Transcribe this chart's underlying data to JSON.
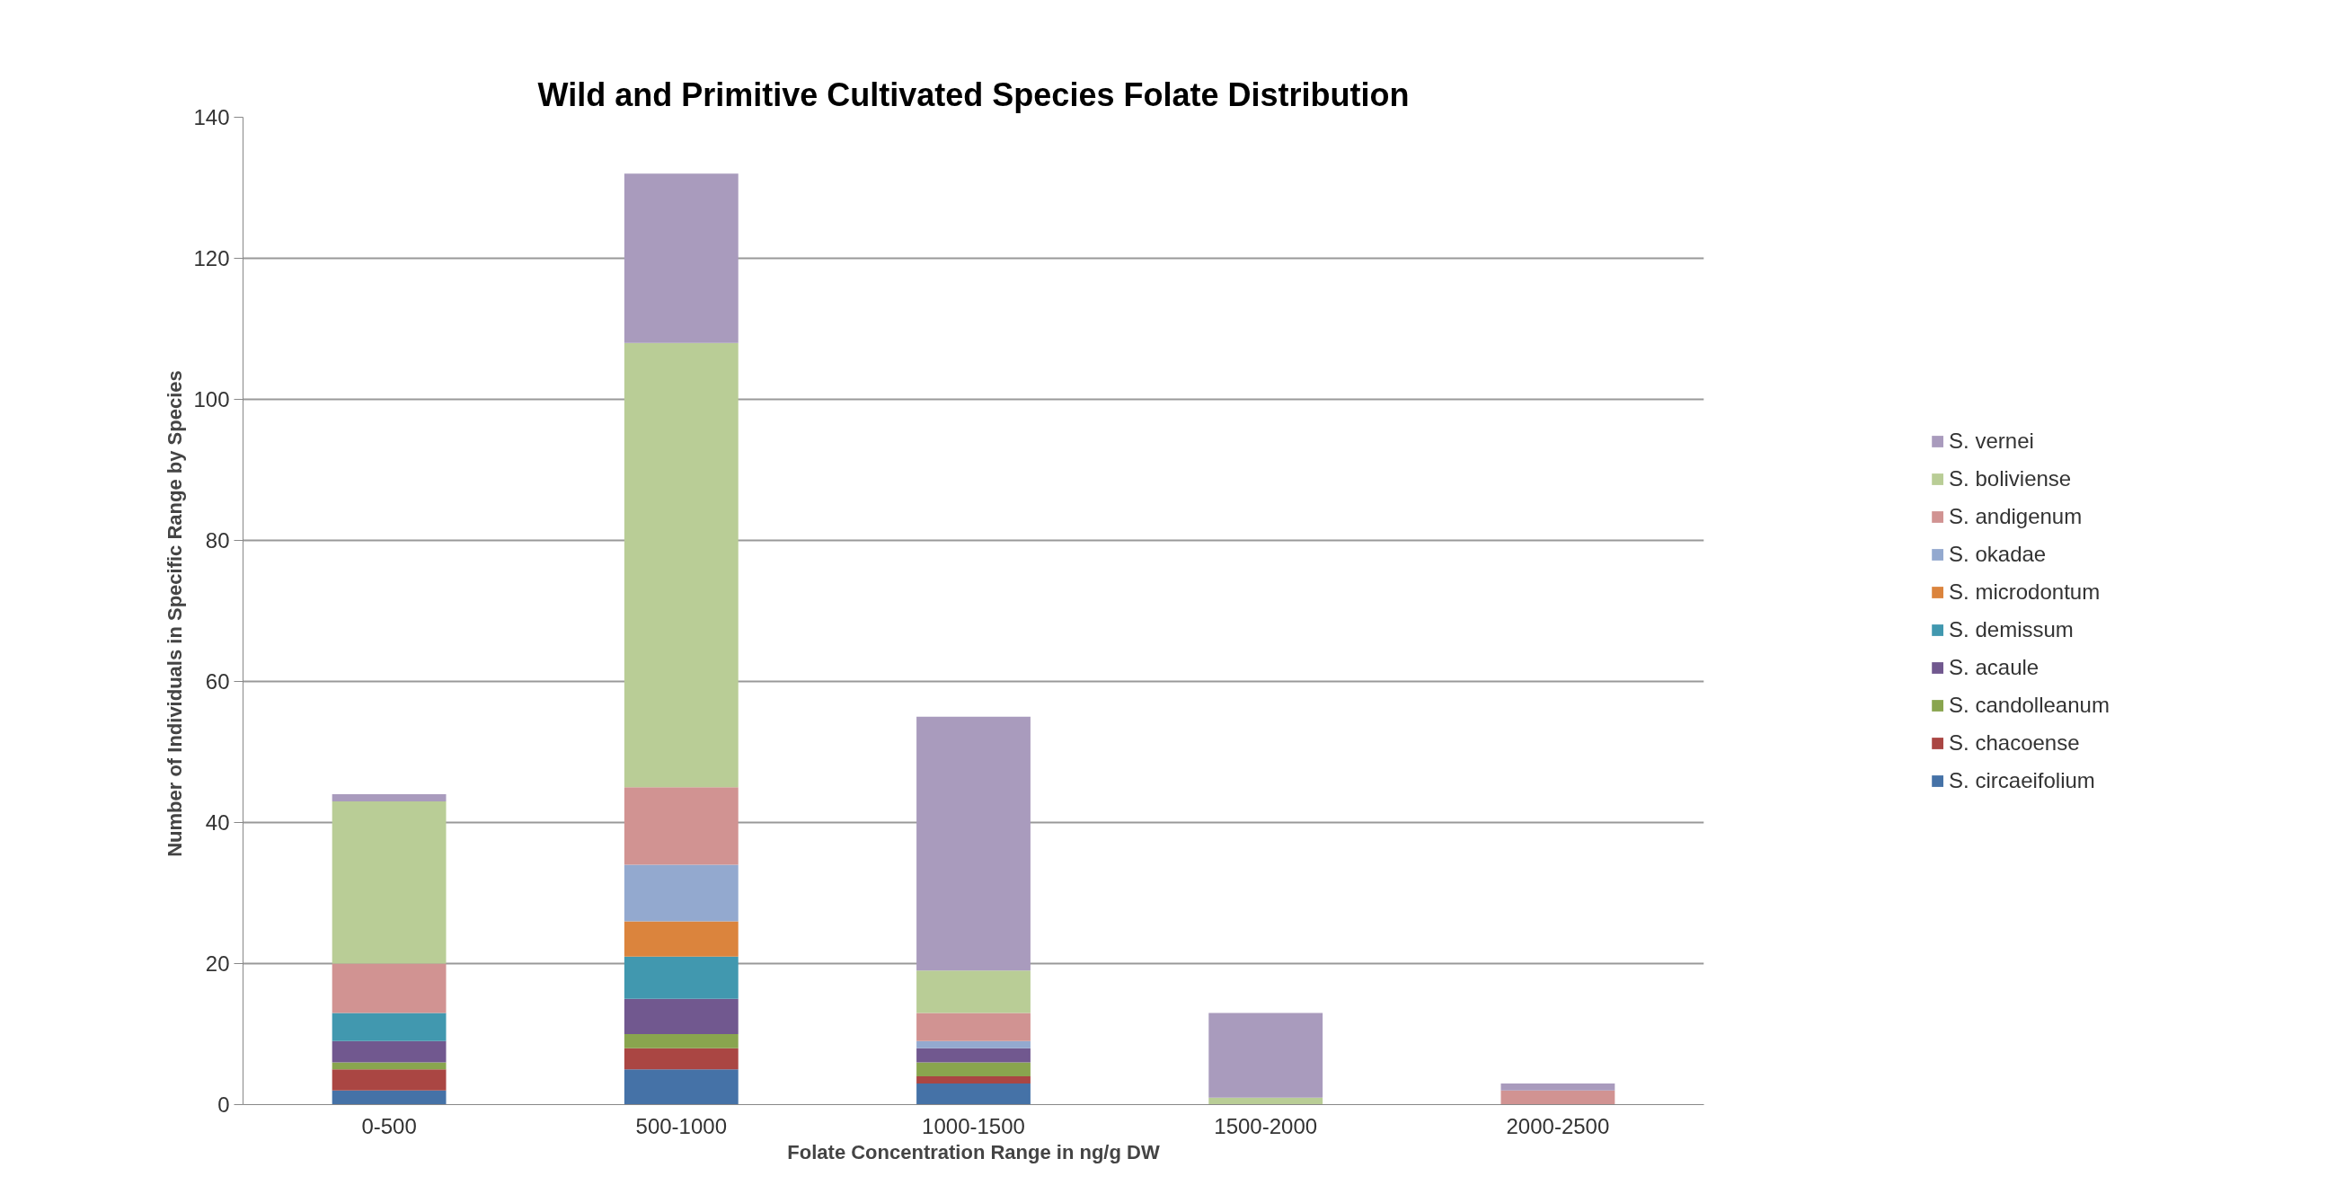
{
  "chart_data": {
    "type": "bar",
    "stacked": true,
    "title": "Wild and Primitive Cultivated Species Folate Distribution",
    "xlabel": "Folate Concentration Range in ng/g DW",
    "ylabel": "Number of Individuals in  Specific Range by Species",
    "categories": [
      "0-500",
      "500-1000",
      "1000-1500",
      "1500-2000",
      "2000-2500"
    ],
    "series": [
      {
        "name": "S. circaeifolium",
        "color": "#4572a7",
        "values": [
          2,
          5,
          3,
          0,
          0
        ]
      },
      {
        "name": "S. chacoense",
        "color": "#aa4643",
        "values": [
          3,
          3,
          1,
          0,
          0
        ]
      },
      {
        "name": "S. candolleanum",
        "color": "#89a54e",
        "values": [
          1,
          2,
          2,
          0,
          0
        ]
      },
      {
        "name": "S. acaule",
        "color": "#71588f",
        "values": [
          3,
          5,
          2,
          0,
          0
        ]
      },
      {
        "name": "S. demissum",
        "color": "#4198af",
        "values": [
          4,
          6,
          0,
          0,
          0
        ]
      },
      {
        "name": "S. microdontum",
        "color": "#db843d",
        "values": [
          0,
          5,
          0,
          0,
          0
        ]
      },
      {
        "name": "S. okadae",
        "color": "#93a9cf",
        "values": [
          0,
          8,
          1,
          0,
          0
        ]
      },
      {
        "name": "S. andigenum",
        "color": "#d19392",
        "values": [
          7,
          11,
          4,
          0,
          2
        ]
      },
      {
        "name": "S. boliviense",
        "color": "#b9cd96",
        "values": [
          23,
          63,
          6,
          1,
          0
        ]
      },
      {
        "name": "S. vernei",
        "color": "#a99bbd",
        "values": [
          1,
          24,
          36,
          12,
          1
        ]
      }
    ],
    "ylim": [
      0,
      140
    ],
    "yticks": [
      0,
      20,
      40,
      60,
      80,
      100,
      120,
      140
    ],
    "grid": "y",
    "legend": "right"
  }
}
